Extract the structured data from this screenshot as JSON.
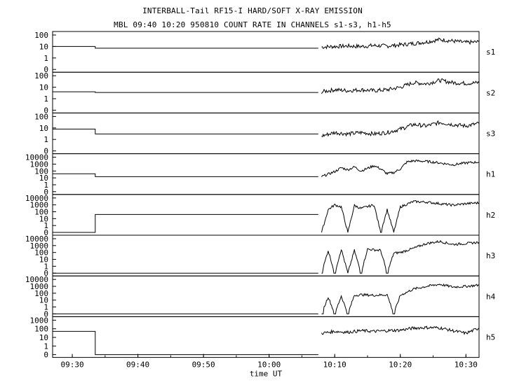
{
  "title": "INTERBALL-Tail RF15-I HARD/SOFT X-RAY EMISSION",
  "subtitle": "MBL 09:40 10:20 950810  COUNT RATE IN CHANNELS s1-s3, h1-h5",
  "chart_data": {
    "type": "line",
    "title": "INTERBALL-Tail RF15-I HARD/SOFT X-RAY EMISSION",
    "subtitle": "MBL 09:40 10:20 950810  COUNT RATE IN CHANNELS s1-s3, h1-h5",
    "xlabel": "time UT",
    "x_ticks": [
      "09:30",
      "09:40",
      "09:50",
      "10:00",
      "10:10",
      "10:20",
      "10:30"
    ],
    "xlim": [
      "09:27",
      "10:32"
    ],
    "y_scale": "log",
    "grid": false,
    "panels": [
      {
        "name": "s1",
        "y_ticks": [
          "100",
          "10",
          "1",
          "0"
        ],
        "ylim": [
          0,
          100
        ],
        "baseline": [
          [
            "09:27",
            10
          ],
          [
            "09:33.5",
            10
          ],
          [
            "09:33.5",
            7
          ],
          [
            "10:07.5",
            7
          ]
        ],
        "series": [
          [
            "10:08",
            9
          ],
          [
            "10:10",
            10
          ],
          [
            "10:12",
            11
          ],
          [
            "10:14",
            10
          ],
          [
            "10:16",
            12
          ],
          [
            "10:18",
            11
          ],
          [
            "10:20",
            14
          ],
          [
            "10:22",
            18
          ],
          [
            "10:24",
            25
          ],
          [
            "10:26",
            40
          ],
          [
            "10:28",
            30
          ],
          [
            "10:30",
            22
          ],
          [
            "10:32",
            25
          ]
        ]
      },
      {
        "name": "s2",
        "y_ticks": [
          "100",
          "10",
          "1",
          "0"
        ],
        "ylim": [
          0,
          100
        ],
        "baseline": [
          [
            "09:27",
            4
          ],
          [
            "09:33.5",
            4
          ],
          [
            "09:33.5",
            3.5
          ],
          [
            "10:07.5",
            3.5
          ]
        ],
        "series": [
          [
            "10:08",
            4
          ],
          [
            "10:10",
            6
          ],
          [
            "10:12",
            5
          ],
          [
            "10:14",
            6
          ],
          [
            "10:16",
            5
          ],
          [
            "10:18",
            6
          ],
          [
            "10:20",
            10
          ],
          [
            "10:22",
            25
          ],
          [
            "10:24",
            20
          ],
          [
            "10:26",
            40
          ],
          [
            "10:28",
            25
          ],
          [
            "10:30",
            22
          ],
          [
            "10:32",
            25
          ]
        ]
      },
      {
        "name": "s3",
        "y_ticks": [
          "100",
          "10",
          "1",
          "0"
        ],
        "ylim": [
          0,
          100
        ],
        "baseline": [
          [
            "09:27",
            8
          ],
          [
            "09:33.5",
            8
          ],
          [
            "09:33.5",
            3
          ],
          [
            "10:07.5",
            3
          ]
        ],
        "series": [
          [
            "10:08",
            2
          ],
          [
            "10:10",
            4
          ],
          [
            "10:12",
            3
          ],
          [
            "10:14",
            4
          ],
          [
            "10:16",
            3
          ],
          [
            "10:18",
            4
          ],
          [
            "10:20",
            8
          ],
          [
            "10:22",
            20
          ],
          [
            "10:24",
            15
          ],
          [
            "10:26",
            30
          ],
          [
            "10:28",
            20
          ],
          [
            "10:30",
            15
          ],
          [
            "10:32",
            25
          ]
        ]
      },
      {
        "name": "h1",
        "y_ticks": [
          "10000",
          "1000",
          "100",
          "10",
          "1",
          "0"
        ],
        "ylim": [
          0,
          10000
        ],
        "baseline": [
          [
            "09:27",
            40
          ],
          [
            "09:33.5",
            40
          ],
          [
            "09:33.5",
            15
          ],
          [
            "10:07.5",
            15
          ]
        ],
        "series": [
          [
            "10:08",
            15
          ],
          [
            "10:10",
            80
          ],
          [
            "10:11",
            300
          ],
          [
            "10:12",
            150
          ],
          [
            "10:13",
            400
          ],
          [
            "10:14",
            100
          ],
          [
            "10:16",
            600
          ],
          [
            "10:17",
            200
          ],
          [
            "10:18",
            40
          ],
          [
            "10:19",
            60
          ],
          [
            "10:20",
            200
          ],
          [
            "10:21",
            2000
          ],
          [
            "10:22",
            3000
          ],
          [
            "10:24",
            2500
          ],
          [
            "10:26",
            1500
          ],
          [
            "10:28",
            800
          ],
          [
            "10:30",
            1500
          ],
          [
            "10:32",
            2000
          ]
        ]
      },
      {
        "name": "h2",
        "y_ticks": [
          "10000",
          "1000",
          "100",
          "10",
          "1",
          "0"
        ],
        "ylim": [
          0,
          10000
        ],
        "baseline": [
          [
            "09:27",
            0
          ],
          [
            "09:33.5",
            0
          ],
          [
            "09:33.5",
            40
          ],
          [
            "10:07.5",
            40
          ]
        ],
        "series": [
          [
            "10:08",
            0
          ],
          [
            "10:09",
            200
          ],
          [
            "10:10",
            1000
          ],
          [
            "10:11",
            500
          ],
          [
            "10:12",
            0
          ],
          [
            "10:13",
            800
          ],
          [
            "10:14",
            300
          ],
          [
            "10:16",
            1000
          ],
          [
            "10:17",
            0
          ],
          [
            "10:18",
            200
          ],
          [
            "10:19",
            0
          ],
          [
            "10:20",
            500
          ],
          [
            "10:22",
            3000
          ],
          [
            "10:24",
            2500
          ],
          [
            "10:26",
            1500
          ],
          [
            "10:28",
            900
          ],
          [
            "10:30",
            1500
          ],
          [
            "10:32",
            2000
          ]
        ]
      },
      {
        "name": "h3",
        "y_ticks": [
          "10000",
          "1000",
          "100",
          "10",
          "1",
          "0"
        ],
        "ylim": [
          0,
          10000
        ],
        "baseline": [
          [
            "09:27",
            0
          ],
          [
            "10:07.5",
            0
          ]
        ],
        "series": [
          [
            "10:08",
            0
          ],
          [
            "10:09",
            200
          ],
          [
            "10:10",
            0
          ],
          [
            "10:11",
            300
          ],
          [
            "10:12",
            0
          ],
          [
            "10:13",
            200
          ],
          [
            "10:14",
            0
          ],
          [
            "10:15",
            300
          ],
          [
            "10:17",
            200
          ],
          [
            "10:18",
            0
          ],
          [
            "10:19",
            80
          ],
          [
            "10:20",
            100
          ],
          [
            "10:22",
            400
          ],
          [
            "10:24",
            2000
          ],
          [
            "10:26",
            4000
          ],
          [
            "10:28",
            1500
          ],
          [
            "10:30",
            2000
          ],
          [
            "10:32",
            3000
          ]
        ]
      },
      {
        "name": "h4",
        "y_ticks": [
          "10000",
          "1000",
          "100",
          "10",
          "1",
          "0"
        ],
        "ylim": [
          0,
          10000
        ],
        "baseline": [
          [
            "09:27",
            0
          ],
          [
            "10:07.5",
            0
          ]
        ],
        "series": [
          [
            "10:08",
            0
          ],
          [
            "10:09",
            30
          ],
          [
            "10:10",
            0
          ],
          [
            "10:11",
            40
          ],
          [
            "10:12",
            0
          ],
          [
            "10:13",
            50
          ],
          [
            "10:14",
            60
          ],
          [
            "10:16",
            50
          ],
          [
            "10:18",
            60
          ],
          [
            "10:19",
            0
          ],
          [
            "10:20",
            50
          ],
          [
            "10:22",
            400
          ],
          [
            "10:24",
            1000
          ],
          [
            "10:26",
            2000
          ],
          [
            "10:28",
            800
          ],
          [
            "10:30",
            1000
          ],
          [
            "10:32",
            1500
          ]
        ]
      },
      {
        "name": "h5",
        "y_ticks": [
          "1000",
          "100",
          "10",
          "1",
          "0"
        ],
        "ylim": [
          0,
          1000
        ],
        "baseline": [
          [
            "09:27",
            50
          ],
          [
            "09:33.5",
            50
          ],
          [
            "09:33.5",
            0
          ],
          [
            "10:07.5",
            0
          ]
        ],
        "series": [
          [
            "10:08",
            30
          ],
          [
            "10:10",
            50
          ],
          [
            "10:12",
            40
          ],
          [
            "10:14",
            60
          ],
          [
            "10:16",
            50
          ],
          [
            "10:18",
            60
          ],
          [
            "10:20",
            70
          ],
          [
            "10:22",
            120
          ],
          [
            "10:24",
            140
          ],
          [
            "10:26",
            130
          ],
          [
            "10:28",
            60
          ],
          [
            "10:30",
            30
          ],
          [
            "10:32",
            120
          ]
        ]
      }
    ]
  }
}
